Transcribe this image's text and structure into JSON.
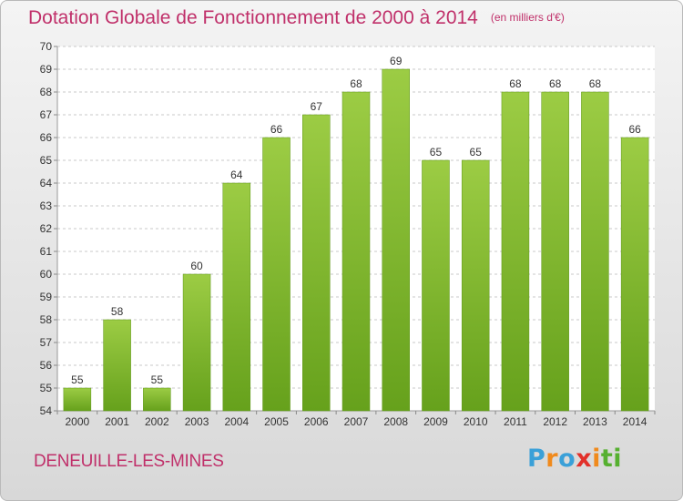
{
  "title": "Dotation Globale de Fonctionnement de 2000 à 2014",
  "unit_label": "(en milliers d'€)",
  "commune": "DENEUILLE-LES-MINES",
  "brand": {
    "letters": [
      "P",
      "r",
      "o",
      "x",
      "i",
      "t",
      "i"
    ],
    "colors": [
      "#3aa0d8",
      "#f08a1c",
      "#3aa0d8",
      "#e2302a",
      "#f08a1c",
      "#56b030",
      "#56b030"
    ]
  },
  "colors": {
    "title": "#c0306a",
    "bar_light": "#9ccc44",
    "bar_dark": "#66a11c",
    "grid": "#c8c8c8"
  },
  "chart_data": {
    "type": "bar",
    "categories": [
      "2000",
      "2001",
      "2002",
      "2003",
      "2004",
      "2005",
      "2006",
      "2007",
      "2008",
      "2009",
      "2010",
      "2011",
      "2012",
      "2013",
      "2014"
    ],
    "values": [
      55,
      58,
      55,
      60,
      64,
      66,
      67,
      68,
      69,
      65,
      65,
      68,
      68,
      68,
      66
    ],
    "data_labels": [
      "55",
      "58",
      "55",
      "60",
      "64",
      "66",
      "67",
      "68",
      "69",
      "65",
      "65",
      "68",
      "68",
      "68",
      "66"
    ],
    "y_ticks": [
      "54",
      "55",
      "56",
      "57",
      "58",
      "59",
      "60",
      "61",
      "62",
      "63",
      "64",
      "65",
      "66",
      "67",
      "68",
      "69",
      "70"
    ],
    "ylim": [
      54,
      70
    ],
    "grid": true,
    "legend": "none"
  }
}
